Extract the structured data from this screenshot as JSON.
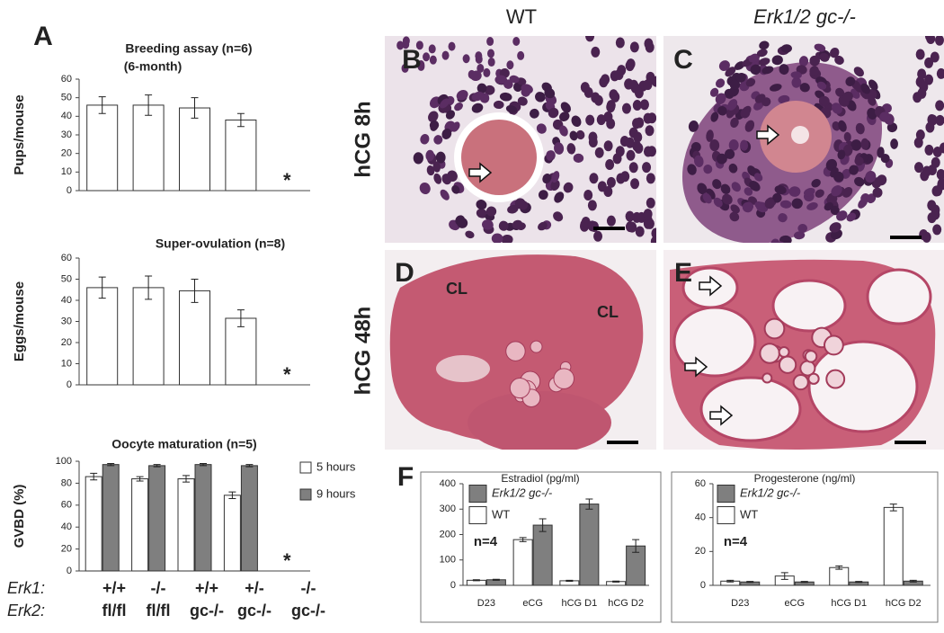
{
  "figure": {
    "panel_labels": [
      "A",
      "B",
      "C",
      "D",
      "E",
      "F"
    ],
    "column_titles": [
      "WT",
      "Erk1/2 gc-/-"
    ],
    "row_titles": [
      "hCG 8h",
      "hCG 48h"
    ],
    "image_labels": [
      "CL",
      "CL"
    ],
    "genotypes": [
      {
        "label": "Erk1:",
        "values": [
          "+/+",
          "-/-",
          "+/+",
          "+/-",
          "-/-"
        ]
      },
      {
        "label": "Erk2:",
        "values": [
          "fl/fl",
          "fl/fl",
          "gc-/-",
          "gc-/-",
          "gc-/-"
        ]
      }
    ]
  },
  "chart_data": [
    {
      "type": "bar",
      "title": "Breeding assay (n=6)",
      "subtitle": "(6-month)",
      "y_label": "Pups/mouse",
      "values": [
        46,
        46,
        44.5,
        38,
        null
      ],
      "errors": [
        4.5,
        5.5,
        5.5,
        3.5,
        null
      ],
      "color": "#ffffff",
      "ylim": [
        0,
        60
      ],
      "yticks": [
        0,
        10,
        20,
        30,
        40,
        50,
        60
      ],
      "annotations": [
        "*"
      ]
    },
    {
      "type": "bar",
      "title": "Super-ovulation (n=8)",
      "y_label": "Eggs/mouse",
      "values": [
        46,
        46,
        44.5,
        31.5,
        null
      ],
      "errors": [
        5,
        5.5,
        5.5,
        4,
        null
      ],
      "color": "#ffffff",
      "ylim": [
        0,
        60
      ],
      "yticks": [
        0,
        10,
        20,
        30,
        40,
        50,
        60
      ],
      "annotations": [
        "*"
      ]
    },
    {
      "type": "bar",
      "title": "Oocyte maturation (n=5)",
      "y_label": "GVBD (%)",
      "series": [
        {
          "name": "5 hours",
          "color": "#ffffff",
          "values": [
            86,
            84,
            84,
            69,
            null
          ],
          "errors": [
            3,
            2,
            3,
            3,
            null
          ]
        },
        {
          "name": "9 hours",
          "color": "#7f7f7f",
          "values": [
            97,
            96,
            97,
            96,
            null
          ],
          "errors": [
            1,
            1,
            1,
            1,
            null
          ]
        }
      ],
      "ylim": [
        0,
        100
      ],
      "yticks": [
        0,
        20,
        40,
        60,
        80,
        100
      ],
      "legend": "right",
      "annotations": [
        "*"
      ]
    },
    {
      "type": "bar",
      "title": "Estradiol (pg/ml)",
      "categories": [
        "D23",
        "eCG",
        "hCG D1",
        "hCG D2"
      ],
      "series": [
        {
          "name": "Erk1/2 gc-/-",
          "color": "#7f7f7f",
          "values": [
            22,
            237,
            320,
            155
          ],
          "errors": [
            2,
            25,
            20,
            25
          ]
        },
        {
          "name": "WT",
          "color": "#ffffff",
          "values": [
            20,
            180,
            18,
            15
          ],
          "errors": [
            2,
            8,
            2,
            2
          ]
        }
      ],
      "ylim": [
        0,
        400
      ],
      "yticks": [
        0,
        100,
        200,
        300,
        400
      ],
      "legend": "upper left",
      "annotations": [
        "n=4"
      ]
    },
    {
      "type": "bar",
      "title": "Progesterone (ng/ml)",
      "categories": [
        "D23",
        "eCG",
        "hCG D1",
        "hCG D2"
      ],
      "series": [
        {
          "name": "Erk1/2 gc-/-",
          "color": "#7f7f7f",
          "values": [
            2,
            2,
            2,
            2.5
          ],
          "errors": [
            0.3,
            0.3,
            0.3,
            0.5
          ]
        },
        {
          "name": "WT",
          "color": "#ffffff",
          "values": [
            2.5,
            5.5,
            10.5,
            46
          ],
          "errors": [
            0.5,
            2,
            1,
            2
          ]
        }
      ],
      "ylim": [
        0,
        60
      ],
      "yticks": [
        0,
        20,
        40,
        60
      ],
      "legend": "upper left",
      "annotations": [
        "n=4"
      ]
    }
  ]
}
